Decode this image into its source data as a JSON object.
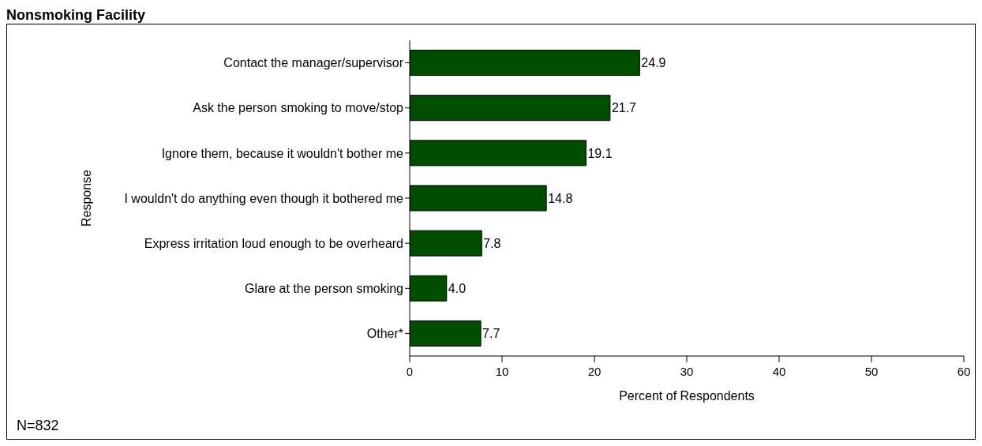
{
  "chart_data": {
    "type": "bar",
    "orientation": "horizontal",
    "title": "Nonsmoking Facility",
    "xlabel": "Percent of Respondents",
    "ylabel": "Response",
    "categories": [
      "Contact the manager/supervisor",
      "Ask the person smoking to move/stop",
      "Ignore them, because it wouldn't bother me",
      "I wouldn't do anything even though it bothered me",
      "Express irritation loud enough to be overheard",
      "Glare at the person smoking",
      "Other*"
    ],
    "values": [
      24.9,
      21.7,
      19.1,
      14.8,
      7.8,
      4.0,
      7.7
    ],
    "value_labels": [
      "24.9",
      "21.7",
      "19.1",
      "14.8",
      "7.8",
      "4.0",
      "7.7"
    ],
    "color": "#004d00",
    "xlim": [
      0,
      60
    ],
    "xticks": [
      0,
      10,
      20,
      30,
      40,
      50,
      60
    ],
    "annotations": [
      "N=832"
    ]
  }
}
